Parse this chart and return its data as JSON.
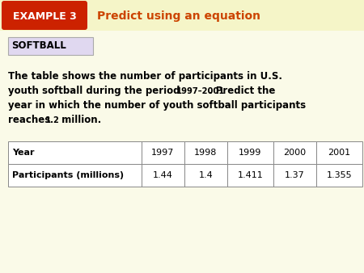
{
  "bg_color": "#fafae8",
  "header_stripe_color": "#f5f5c8",
  "example_box_color": "#cc2200",
  "example_box_text": "EXAMPLE 3",
  "header_title": "Predict using an equation",
  "header_title_color": "#cc4400",
  "softball_label": "SOFTBALL",
  "softball_bg": "#e0d8f0",
  "softball_border": "#aaaaaa",
  "body_text_line1": "The table shows the number of participants in U.S.",
  "body_text_line2a": "youth softball during the period ",
  "body_text_period": "1997–2001",
  "body_text_line2b": ". Predict the",
  "body_text_line3": "year in which the number of youth softball participants",
  "body_text_line4a": "reaches ",
  "body_text_value": "1.2",
  "body_text_line4b": " million.",
  "table_years": [
    "Year",
    "1997",
    "1998",
    "1999",
    "2000",
    "2001"
  ],
  "table_participants": [
    "Participants (millions)",
    "1.44",
    "1.4",
    "1.411",
    "1.37",
    "1.355"
  ],
  "table_border_color": "#888888",
  "table_text_color": "#000000",
  "white": "#ffffff"
}
